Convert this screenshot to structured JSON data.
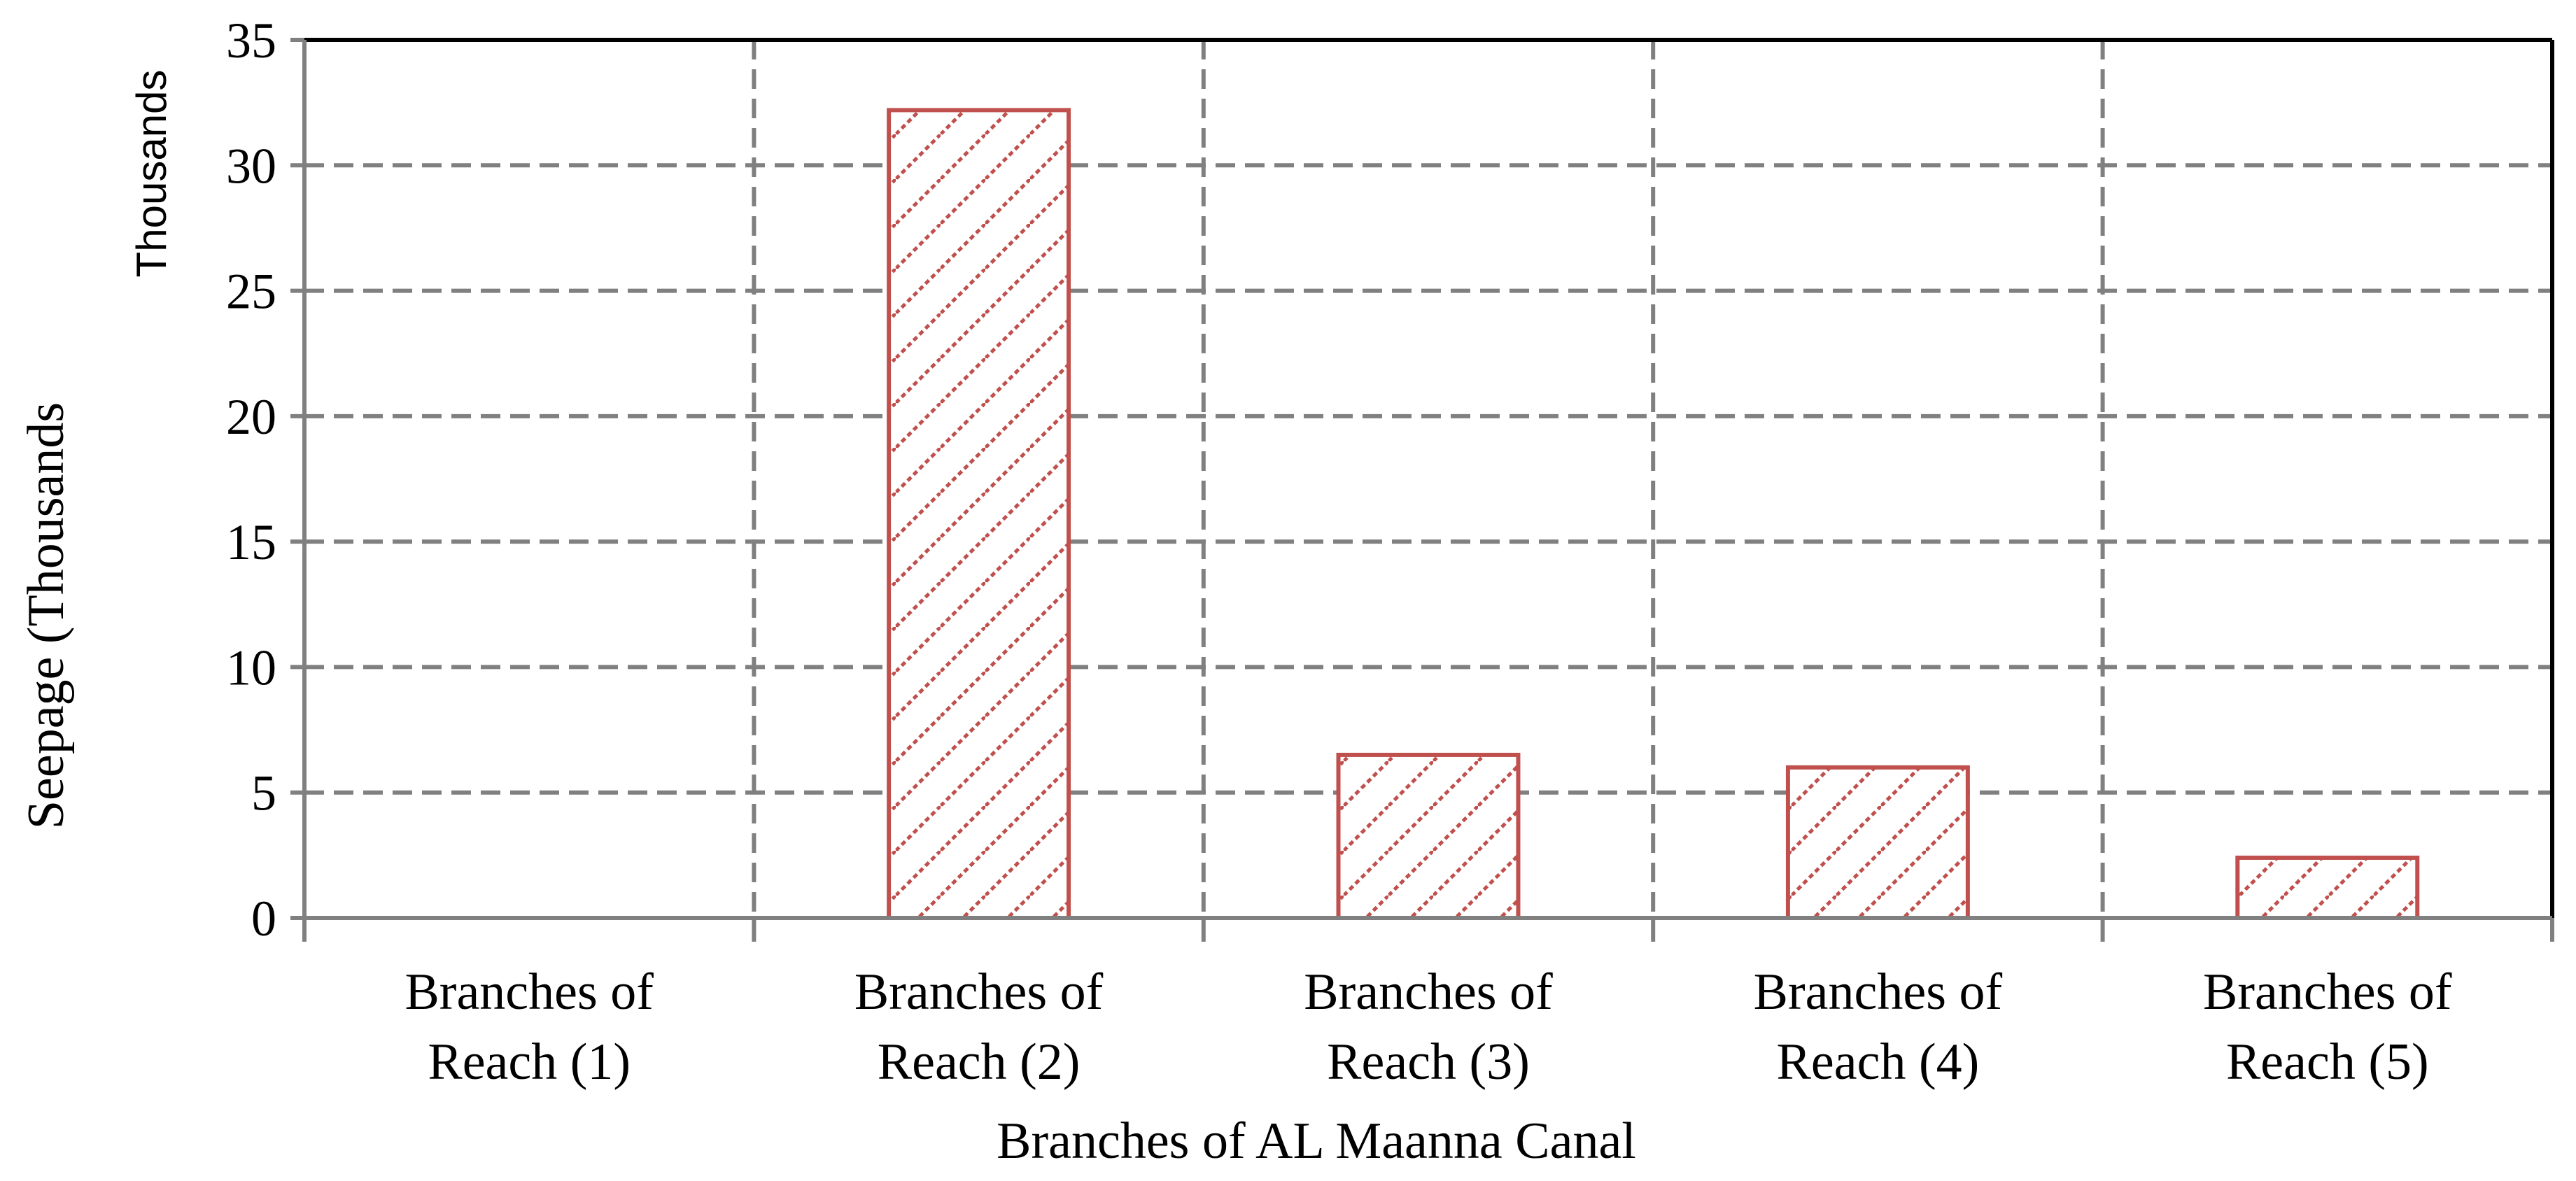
{
  "chart_data": {
    "type": "bar",
    "categories": [
      [
        "Branches of",
        "Reach (1)"
      ],
      [
        "Branches of",
        "Reach (2)"
      ],
      [
        "Branches of",
        "Reach (3)"
      ],
      [
        "Branches of",
        "Reach (4)"
      ],
      [
        "Branches of",
        "Reach (5)"
      ]
    ],
    "values": [
      0,
      32.2,
      6.5,
      6.0,
      2.4
    ],
    "xlabel": "Branches of AL Maanna Canal",
    "ylabel": "Seepage (Thousands",
    "y_unit_label": "Thousands",
    "ylim": [
      0,
      35
    ],
    "yticks": [
      "0",
      "5",
      "10",
      "15",
      "20",
      "25",
      "30",
      "35"
    ],
    "grid": true,
    "bar_color": "#c0504d",
    "bar_pattern": "diagonal-hatch",
    "legend": false
  }
}
